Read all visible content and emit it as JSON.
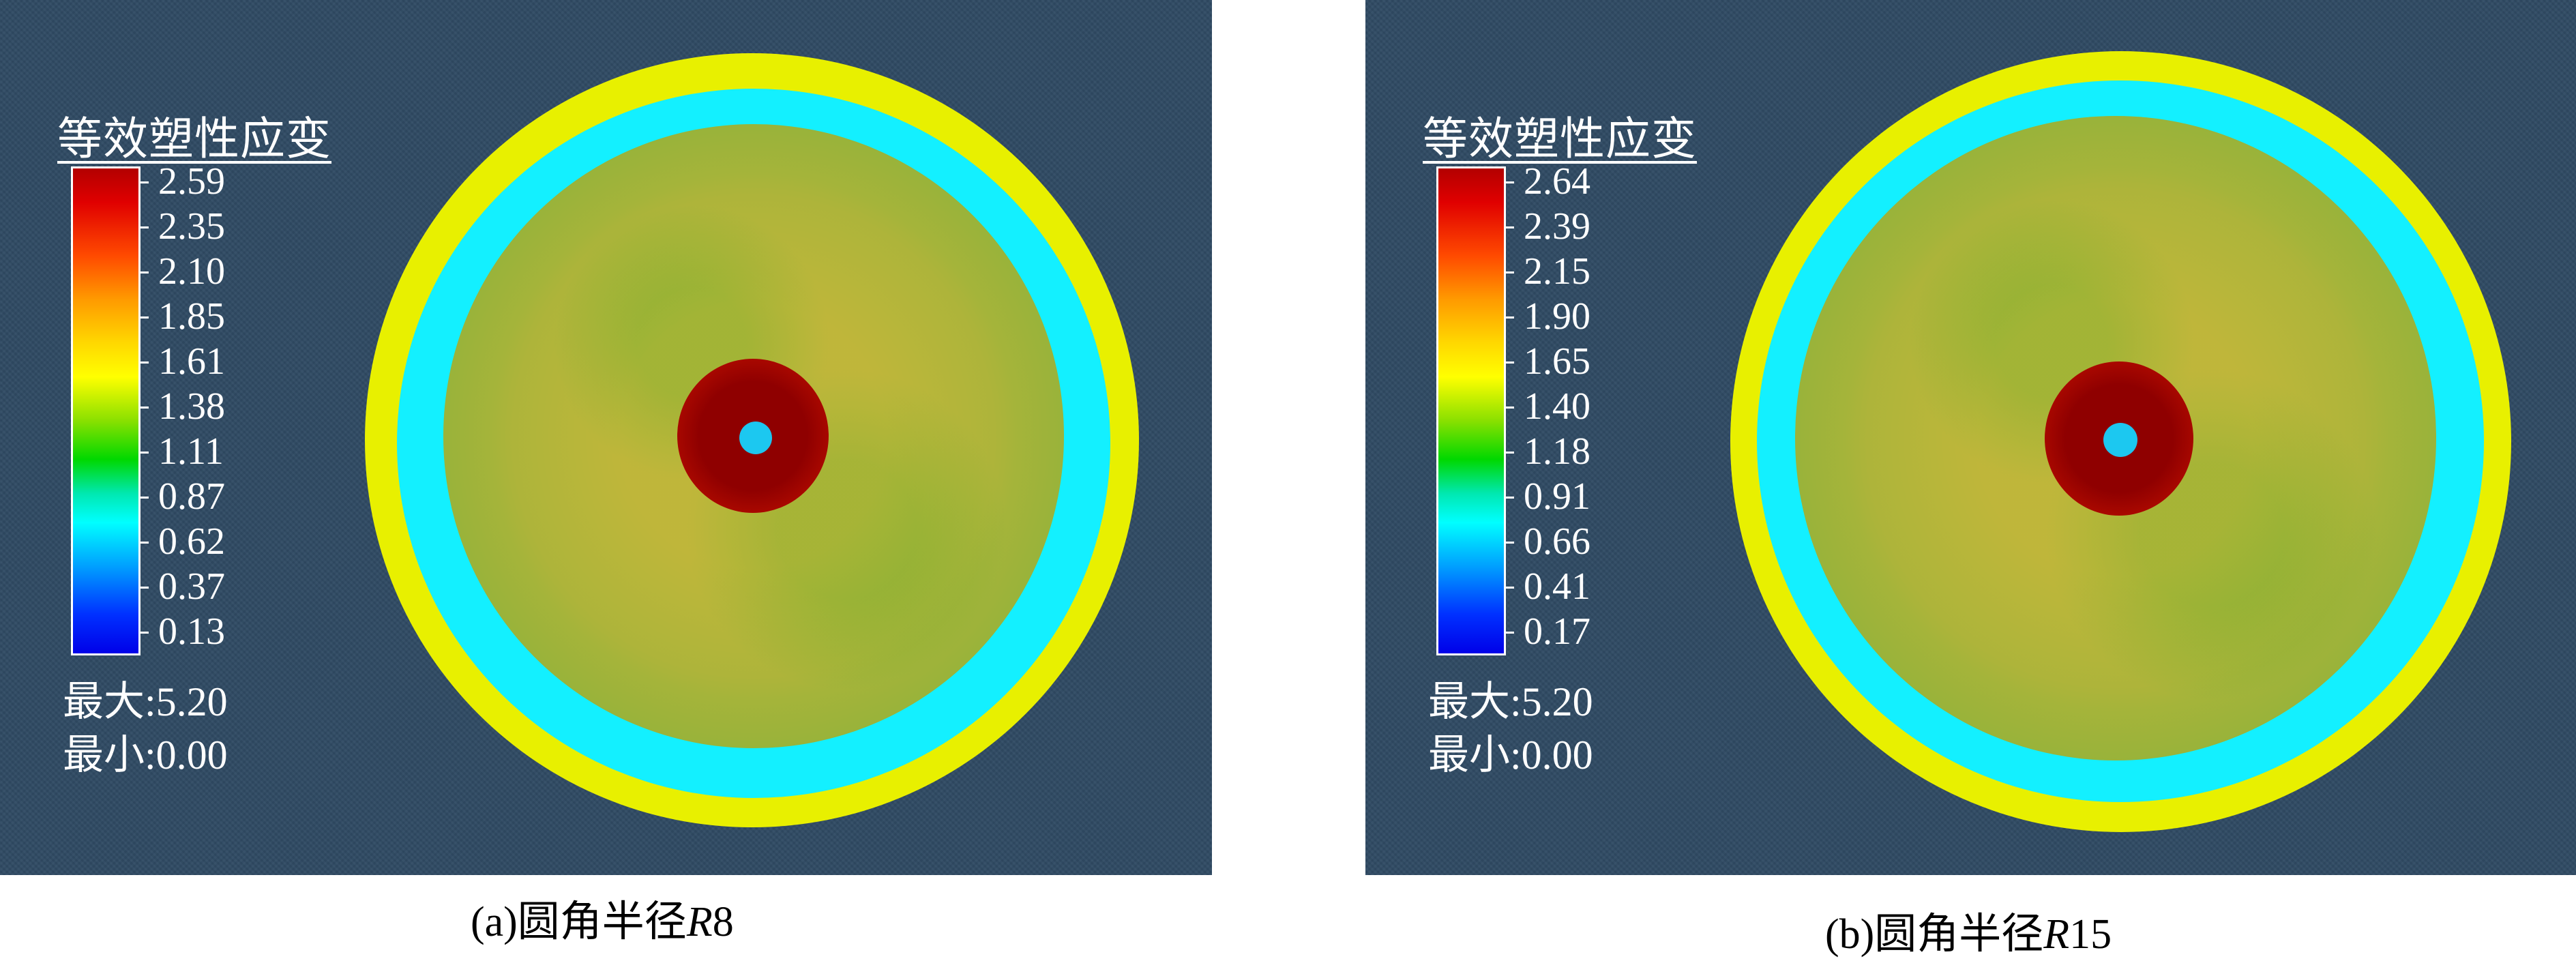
{
  "panels": [
    {
      "legend_title": "等效塑性应变",
      "ticks": [
        "2.59",
        "2.35",
        "2.10",
        "1.85",
        "1.61",
        "1.38",
        "1.11",
        "0.87",
        "0.62",
        "0.37",
        "0.13"
      ],
      "max_label": "最大:5.20",
      "min_label": "最小:0.00",
      "caption_prefix": "(a)圆角半径",
      "caption_var": "R",
      "caption_num": "8"
    },
    {
      "legend_title": "等效塑性应变",
      "ticks": [
        "2.64",
        "2.39",
        "2.15",
        "1.90",
        "1.65",
        "1.40",
        "1.18",
        "0.91",
        "0.66",
        "0.41",
        "0.17"
      ],
      "max_label": "最大:5.20",
      "min_label": "最小:0.00",
      "caption_prefix": "(b)圆角半径",
      "caption_var": "R",
      "caption_num": "15"
    }
  ],
  "colors": {
    "background": "#2f4a63",
    "colorbar_top": "#b30000",
    "colorbar_mid": "#ffff00",
    "colorbar_bottom": "#0000e8"
  }
}
